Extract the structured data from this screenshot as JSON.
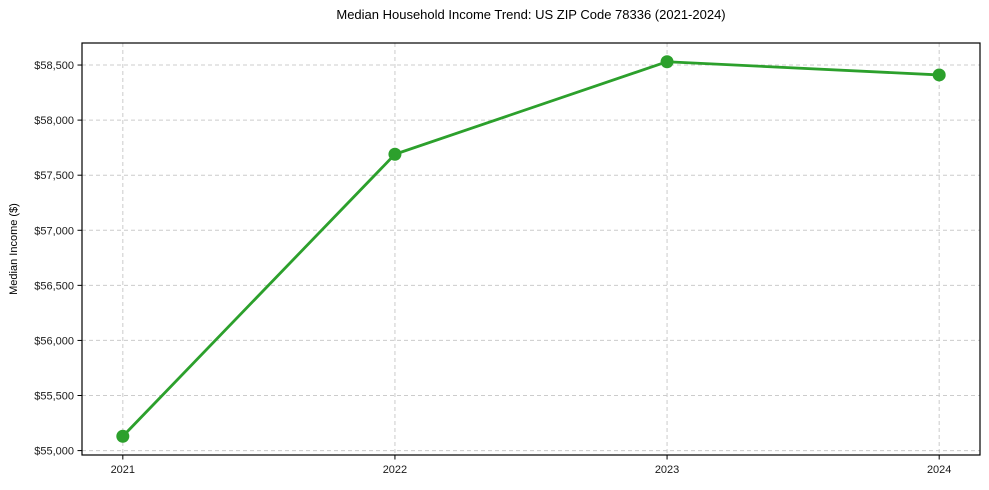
{
  "chart_data": {
    "type": "line",
    "title": "Median Household Income Trend: US ZIP Code 78336 (2021-2024)",
    "xlabel": "",
    "ylabel": "Median Income ($)",
    "x": [
      2021,
      2022,
      2023,
      2024
    ],
    "series": [
      {
        "name": "median-household-income",
        "values": [
          55130,
          57690,
          58530,
          58410
        ],
        "color": "#2ca02c",
        "marker": "circle",
        "marker_radius": 6.5,
        "line_width": 2.8
      }
    ],
    "xtick_labels": [
      "2021",
      "2022",
      "2023",
      "2024"
    ],
    "ytick_values": [
      55000,
      55500,
      56000,
      56500,
      57000,
      57500,
      58000,
      58500
    ],
    "ytick_labels": [
      "$55,000",
      "$55,500",
      "$56,000",
      "$56,500",
      "$57,000",
      "$57,500",
      "$58,000",
      "$58,500"
    ],
    "xlim": [
      2020.85,
      2024.15
    ],
    "ylim": [
      54960,
      58700
    ],
    "grid": true,
    "grid_style": "dashed",
    "grid_color": "#cccccc",
    "spine_color": "#000000",
    "tick_color": "#000000",
    "legend_position": "none"
  }
}
